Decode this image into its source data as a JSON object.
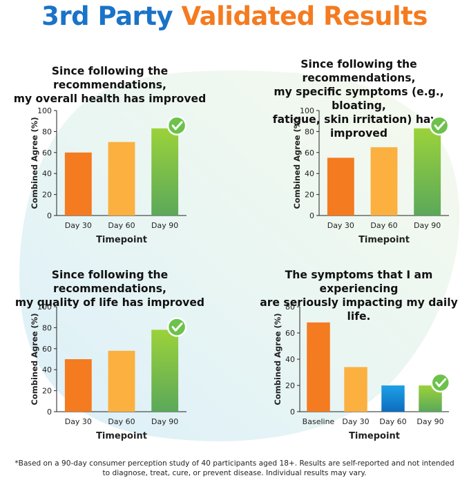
{
  "headline": {
    "part1": "3rd Party",
    "part2": "Validated Results"
  },
  "colors": {
    "blue": "#1a73c8",
    "orange": "#f47b20",
    "bar_day30": "#f47b20",
    "bar_day60": "#fbb040",
    "bar_day90_top": "#9bd23a",
    "bar_day90_bottom": "#5ba85a",
    "bar_blue_top": "#1ea1e6",
    "bar_blue_bottom": "#0d6cbf",
    "check": "#6cc24a"
  },
  "check_icon": "check-badge-icon",
  "chart_data": [
    {
      "type": "bar",
      "title_lines": [
        "Since following the recommendations,",
        "my overall health has improved"
      ],
      "categories": [
        "Day 30",
        "Day 60",
        "Day 90"
      ],
      "values": [
        60,
        70,
        83
      ],
      "xlabel": "Timepoint",
      "ylabel": "Combined Agree (%)",
      "ylim": [
        0,
        100
      ],
      "yticks": [
        0,
        20,
        40,
        60,
        80,
        100
      ],
      "highlight": "Day 90",
      "bar_colors": [
        "orange",
        "lightorange",
        "green"
      ]
    },
    {
      "type": "bar",
      "title_lines": [
        "Since following the recommendations,",
        "my specific symptoms (e.g., bloating,",
        "fatigue, skin irritation) have improved"
      ],
      "categories": [
        "Day 30",
        "Day 60",
        "Day 90"
      ],
      "values": [
        55,
        65,
        83
      ],
      "xlabel": "Timepoint",
      "ylabel": "Combined Agree (%)",
      "ylim": [
        0,
        100
      ],
      "yticks": [
        0,
        20,
        40,
        60,
        80,
        100
      ],
      "highlight": "Day 90",
      "bar_colors": [
        "orange",
        "lightorange",
        "green"
      ]
    },
    {
      "type": "bar",
      "title_lines": [
        "Since following the recommendations,",
        "my quality of life has improved"
      ],
      "categories": [
        "Day 30",
        "Day 60",
        "Day 90"
      ],
      "values": [
        50,
        58,
        78
      ],
      "xlabel": "Timepoint",
      "ylabel": "Combined Agree (%)",
      "ylim": [
        0,
        100
      ],
      "yticks": [
        0,
        20,
        40,
        60,
        80,
        100
      ],
      "highlight": "Day 90",
      "bar_colors": [
        "orange",
        "lightorange",
        "green"
      ]
    },
    {
      "type": "bar",
      "title_lines": [
        "The symptoms that I am experiencing",
        "are seriously impacting my daily life."
      ],
      "categories": [
        "Baseline",
        "Day 30",
        "Day 60",
        "Day 90"
      ],
      "values": [
        68,
        34,
        20,
        20
      ],
      "xlabel": "Timepoint",
      "ylabel": "Combined Agree (%)",
      "ylim": [
        0,
        80
      ],
      "yticks": [
        0,
        20,
        40,
        60,
        80
      ],
      "highlight": "Day 90",
      "bar_colors": [
        "orange",
        "lightorange",
        "blue",
        "green"
      ]
    }
  ],
  "footnote": {
    "line1": "*Based on a 90-day consumer perception study of 40 participants aged 18+. Results are self-reported and not intended",
    "line2": "to diagnose, treat, cure, or prevent disease. Individual results may vary."
  }
}
